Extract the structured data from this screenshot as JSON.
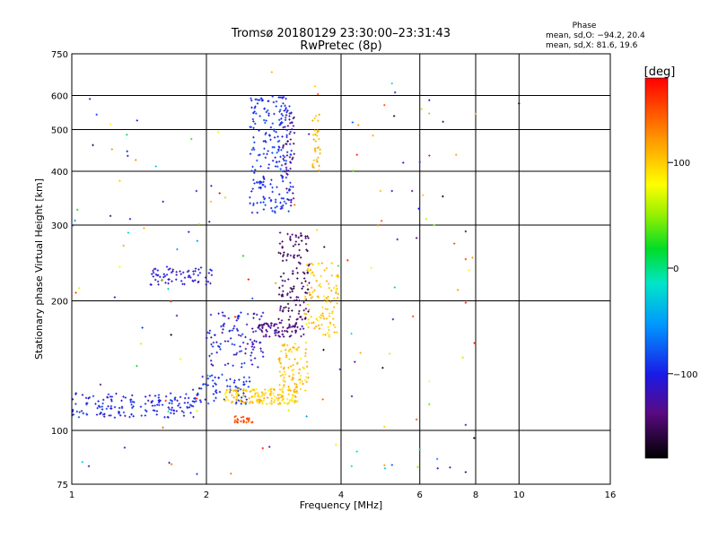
{
  "header": {
    "title_line1": "Tromsø 20180129 23:30:00–23:31:43",
    "title_line2": "RwPretec (8p)",
    "stats_title": "Phase",
    "stats_o": "mean, sd,O: −94.2, 20.4",
    "stats_x": "mean, sd,X: 81.6, 19.6"
  },
  "colorbar": {
    "label": "[deg]",
    "ticks": [
      {
        "label": "100",
        "value": 100
      },
      {
        "label": "0",
        "value": 0
      },
      {
        "label": "−100",
        "value": -100
      }
    ],
    "range": [
      -180,
      180
    ]
  },
  "chart_data": {
    "type": "scatter",
    "xlabel": "Frequency [MHz]",
    "ylabel": "Stationary phase Virtual Height [km]",
    "xscale": "log",
    "yscale": "log",
    "xlim": [
      1,
      16
    ],
    "ylim": [
      75,
      750
    ],
    "xticks": [
      {
        "label": "1",
        "value": 1
      },
      {
        "label": "2",
        "value": 2
      },
      {
        "label": "4",
        "value": 4
      },
      {
        "label": "6",
        "value": 6
      },
      {
        "label": "8",
        "value": 8
      },
      {
        "label": "10",
        "value": 10
      },
      {
        "label": "16",
        "value": 16
      }
    ],
    "yticks": [
      {
        "label": "75",
        "value": 75
      },
      {
        "label": "100",
        "value": 100
      },
      {
        "label": "200",
        "value": 200
      },
      {
        "label": "300",
        "value": 300
      },
      {
        "label": "400",
        "value": 400
      },
      {
        "label": "500",
        "value": 500
      },
      {
        "label": "600",
        "value": 600
      },
      {
        "label": "750",
        "value": 750
      }
    ],
    "grid": true,
    "color_value": "phase [deg]",
    "clusters": [
      {
        "f": [
          1.0,
          1.9
        ],
        "h": [
          107,
          122
        ],
        "phase": [
          -120,
          -80
        ],
        "n": 160
      },
      {
        "f": [
          1.9,
          2.5
        ],
        "h": [
          115,
          135
        ],
        "phase": [
          -110,
          -80
        ],
        "n": 70
      },
      {
        "f": [
          1.5,
          2.1
        ],
        "h": [
          218,
          240
        ],
        "phase": [
          -120,
          -95
        ],
        "n": 70
      },
      {
        "f": [
          2.0,
          2.7
        ],
        "h": [
          140,
          190
        ],
        "phase": [
          -135,
          -80
        ],
        "n": 110
      },
      {
        "f": [
          2.6,
          3.3
        ],
        "h": [
          165,
          178
        ],
        "phase": [
          -155,
          -120
        ],
        "n": 80
      },
      {
        "f": [
          2.9,
          3.4
        ],
        "h": [
          180,
          290
        ],
        "phase": [
          -165,
          -125
        ],
        "n": 130
      },
      {
        "f": [
          2.5,
          3.1
        ],
        "h": [
          320,
          600
        ],
        "phase": [
          -105,
          -80
        ],
        "n": 220
      },
      {
        "f": [
          2.95,
          3.15
        ],
        "h": [
          330,
          560
        ],
        "phase": [
          -150,
          -110
        ],
        "n": 50
      },
      {
        "f": [
          2.2,
          3.2
        ],
        "h": [
          115,
          125
        ],
        "phase": [
          85,
          120
        ],
        "n": 140
      },
      {
        "f": [
          2.9,
          3.4
        ],
        "h": [
          122,
          160
        ],
        "phase": [
          85,
          120
        ],
        "n": 90
      },
      {
        "f": [
          3.3,
          3.95
        ],
        "h": [
          165,
          245
        ],
        "phase": [
          85,
          120
        ],
        "n": 110
      },
      {
        "f": [
          3.45,
          3.6
        ],
        "h": [
          400,
          550
        ],
        "phase": [
          100,
          120
        ],
        "n": 35
      },
      {
        "f": [
          2.3,
          2.55
        ],
        "h": [
          104,
          108
        ],
        "phase": [
          140,
          165
        ],
        "n": 25
      },
      {
        "f": [
          1.0,
          8.0
        ],
        "h": [
          78,
          620
        ],
        "phase": [
          -180,
          180
        ],
        "n": 120
      }
    ],
    "points": [
      {
        "x": 10.0,
        "y": 575,
        "phase": -170
      },
      {
        "x": 5.2,
        "y": 640,
        "phase": -20
      },
      {
        "x": 5.0,
        "y": 570,
        "phase": 150
      },
      {
        "x": 6.3,
        "y": 585,
        "phase": -110
      },
      {
        "x": 6.3,
        "y": 545,
        "phase": 110
      },
      {
        "x": 6.3,
        "y": 435,
        "phase": 170
      },
      {
        "x": 6.0,
        "y": 420,
        "phase": -90
      },
      {
        "x": 6.2,
        "y": 310,
        "phase": 60
      },
      {
        "x": 5.9,
        "y": 280,
        "phase": -140
      },
      {
        "x": 7.6,
        "y": 290,
        "phase": -150
      },
      {
        "x": 7.6,
        "y": 250,
        "phase": 160
      },
      {
        "x": 7.6,
        "y": 198,
        "phase": 170
      },
      {
        "x": 7.6,
        "y": 103,
        "phase": -130
      },
      {
        "x": 7.6,
        "y": 80,
        "phase": -150
      },
      {
        "x": 6.3,
        "y": 130,
        "phase": 80
      },
      {
        "x": 6.3,
        "y": 115,
        "phase": 40
      },
      {
        "x": 5.9,
        "y": 106,
        "phase": 150
      },
      {
        "x": 5.0,
        "y": 102,
        "phase": 100
      },
      {
        "x": 5.0,
        "y": 83,
        "phase": 120
      },
      {
        "x": 5.2,
        "y": 360,
        "phase": -110
      },
      {
        "x": 4.9,
        "y": 360,
        "phase": 110
      },
      {
        "x": 1.4,
        "y": 525,
        "phase": -100
      },
      {
        "x": 1.22,
        "y": 515,
        "phase": 80
      },
      {
        "x": 1.23,
        "y": 450,
        "phase": 120
      },
      {
        "x": 1.33,
        "y": 445,
        "phase": -100
      },
      {
        "x": 1.28,
        "y": 380,
        "phase": 100
      },
      {
        "x": 1.22,
        "y": 315,
        "phase": -150
      },
      {
        "x": 1.35,
        "y": 310,
        "phase": -110
      },
      {
        "x": 1.45,
        "y": 295,
        "phase": 110
      },
      {
        "x": 1.6,
        "y": 340,
        "phase": -120
      },
      {
        "x": 1.9,
        "y": 360,
        "phase": -110
      },
      {
        "x": 2.05,
        "y": 370,
        "phase": -100
      },
      {
        "x": 3.5,
        "y": 630,
        "phase": 100
      },
      {
        "x": 2.8,
        "y": 680,
        "phase": 110
      }
    ]
  }
}
